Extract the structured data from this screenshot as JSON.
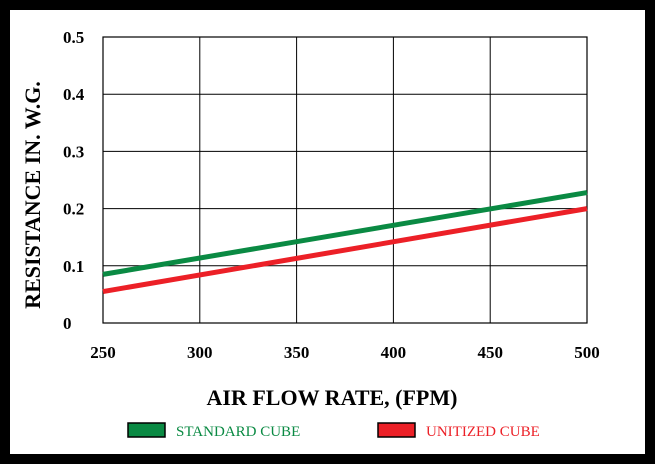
{
  "chart_data": {
    "type": "line",
    "title": "",
    "xlabel": "AIR FLOW RATE, (FPM)",
    "ylabel": "RESISTANCE IN. W.G.",
    "xlim": [
      250,
      500
    ],
    "ylim": [
      0,
      0.5
    ],
    "x_ticks": [
      "250",
      "300",
      "350",
      "400",
      "450",
      "500"
    ],
    "y_ticks": [
      "0",
      "0.1",
      "0.2",
      "0.3",
      "0.4",
      "0.5"
    ],
    "grid": true,
    "legend_position": "bottom",
    "series": [
      {
        "name": "STANDARD CUBE",
        "color": "#0a8a43",
        "x": [
          250,
          500
        ],
        "y": [
          0.085,
          0.228
        ]
      },
      {
        "name": "UNITIZED CUBE",
        "color": "#ec2027",
        "x": [
          250,
          500
        ],
        "y": [
          0.055,
          0.2
        ]
      }
    ]
  }
}
